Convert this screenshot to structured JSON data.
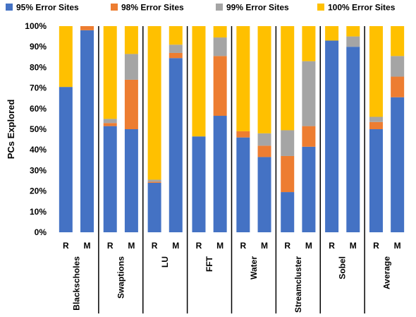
{
  "chart_data": {
    "type": "bar",
    "stacked": true,
    "normalized": true,
    "ylabel": "PCs Explored",
    "xlabel": "",
    "ylim": [
      0,
      100
    ],
    "y_ticks": [
      "0%",
      "10%",
      "20%",
      "30%",
      "40%",
      "50%",
      "60%",
      "70%",
      "80%",
      "90%",
      "100%"
    ],
    "grid": false,
    "legend_position": "top",
    "groups": [
      {
        "name": "Blackscholes",
        "bars": [
          {
            "label": "R",
            "values": [
              70.5,
              0.0,
              0.0,
              29.5
            ]
          },
          {
            "label": "M",
            "values": [
              98.0,
              2.0,
              0.0,
              0.0
            ]
          }
        ]
      },
      {
        "name": "Swaptions",
        "bars": [
          {
            "label": "R",
            "values": [
              51.5,
              1.5,
              2.0,
              45.0
            ]
          },
          {
            "label": "M",
            "values": [
              50.0,
              24.0,
              12.5,
              13.5
            ]
          }
        ]
      },
      {
        "name": "LU",
        "bars": [
          {
            "label": "R",
            "values": [
              24.0,
              0.5,
              1.0,
              74.5
            ]
          },
          {
            "label": "M",
            "values": [
              84.5,
              2.5,
              4.0,
              9.0
            ]
          }
        ]
      },
      {
        "name": "FFT",
        "bars": [
          {
            "label": "R",
            "values": [
              46.5,
              0.0,
              0.0,
              53.5
            ]
          },
          {
            "label": "M",
            "values": [
              56.5,
              29.0,
              9.0,
              5.5
            ]
          }
        ]
      },
      {
        "name": "Water",
        "bars": [
          {
            "label": "R",
            "values": [
              46.0,
              3.0,
              0.0,
              51.0
            ]
          },
          {
            "label": "M",
            "values": [
              36.5,
              5.5,
              6.0,
              52.0
            ]
          }
        ]
      },
      {
        "name": "Streamcluster",
        "bars": [
          {
            "label": "R",
            "values": [
              19.5,
              17.5,
              12.5,
              50.5
            ]
          },
          {
            "label": "M",
            "values": [
              41.5,
              10.0,
              31.5,
              17.0
            ]
          }
        ]
      },
      {
        "name": "Sobel",
        "bars": [
          {
            "label": "R",
            "values": [
              93.0,
              0.0,
              0.0,
              7.0
            ]
          },
          {
            "label": "M",
            "values": [
              90.0,
              0.0,
              5.0,
              5.0
            ]
          }
        ]
      },
      {
        "name": "Average",
        "bars": [
          {
            "label": "R",
            "values": [
              50.0,
              3.5,
              2.5,
              44.0
            ]
          },
          {
            "label": "M",
            "values": [
              65.5,
              10.0,
              10.0,
              14.5
            ]
          }
        ]
      }
    ],
    "series": [
      {
        "name": "95% Error Sites",
        "color": "#4472C4"
      },
      {
        "name": "98% Error Sites",
        "color": "#ED7D31"
      },
      {
        "name": "99% Error Sites",
        "color": "#A5A5A5"
      },
      {
        "name": "100% Error Sites",
        "color": "#FFC000"
      }
    ]
  }
}
